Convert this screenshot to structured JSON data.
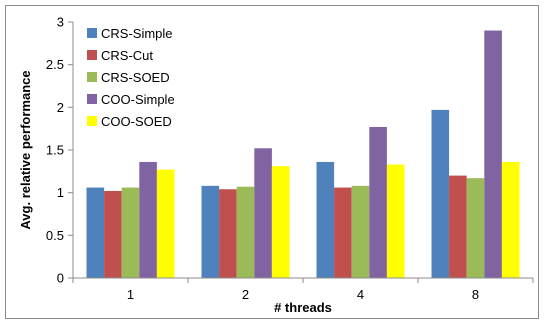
{
  "chart_data": {
    "type": "bar",
    "xlabel": "# threads",
    "ylabel": "Avg. relative performance",
    "categories": [
      "1",
      "2",
      "4",
      "8"
    ],
    "ylim": [
      0,
      3
    ],
    "yticks": [
      "0",
      "0.5",
      "1",
      "1.5",
      "2",
      "2.5",
      "3"
    ],
    "grid": false,
    "legend_position": "top-left",
    "series": [
      {
        "name": "CRS-Simple",
        "color": "#4F81BD",
        "values": [
          1.06,
          1.08,
          1.36,
          1.97
        ]
      },
      {
        "name": "CRS-Cut",
        "color": "#C0504D",
        "values": [
          1.02,
          1.04,
          1.06,
          1.2
        ]
      },
      {
        "name": "CRS-SOED",
        "color": "#9BBB59",
        "values": [
          1.06,
          1.07,
          1.08,
          1.17
        ]
      },
      {
        "name": "COO-Simple",
        "color": "#8064A2",
        "values": [
          1.36,
          1.52,
          1.77,
          2.9
        ]
      },
      {
        "name": "COO-SOED",
        "color": "#FFFF00",
        "values": [
          1.27,
          1.31,
          1.33,
          1.36
        ]
      }
    ]
  }
}
